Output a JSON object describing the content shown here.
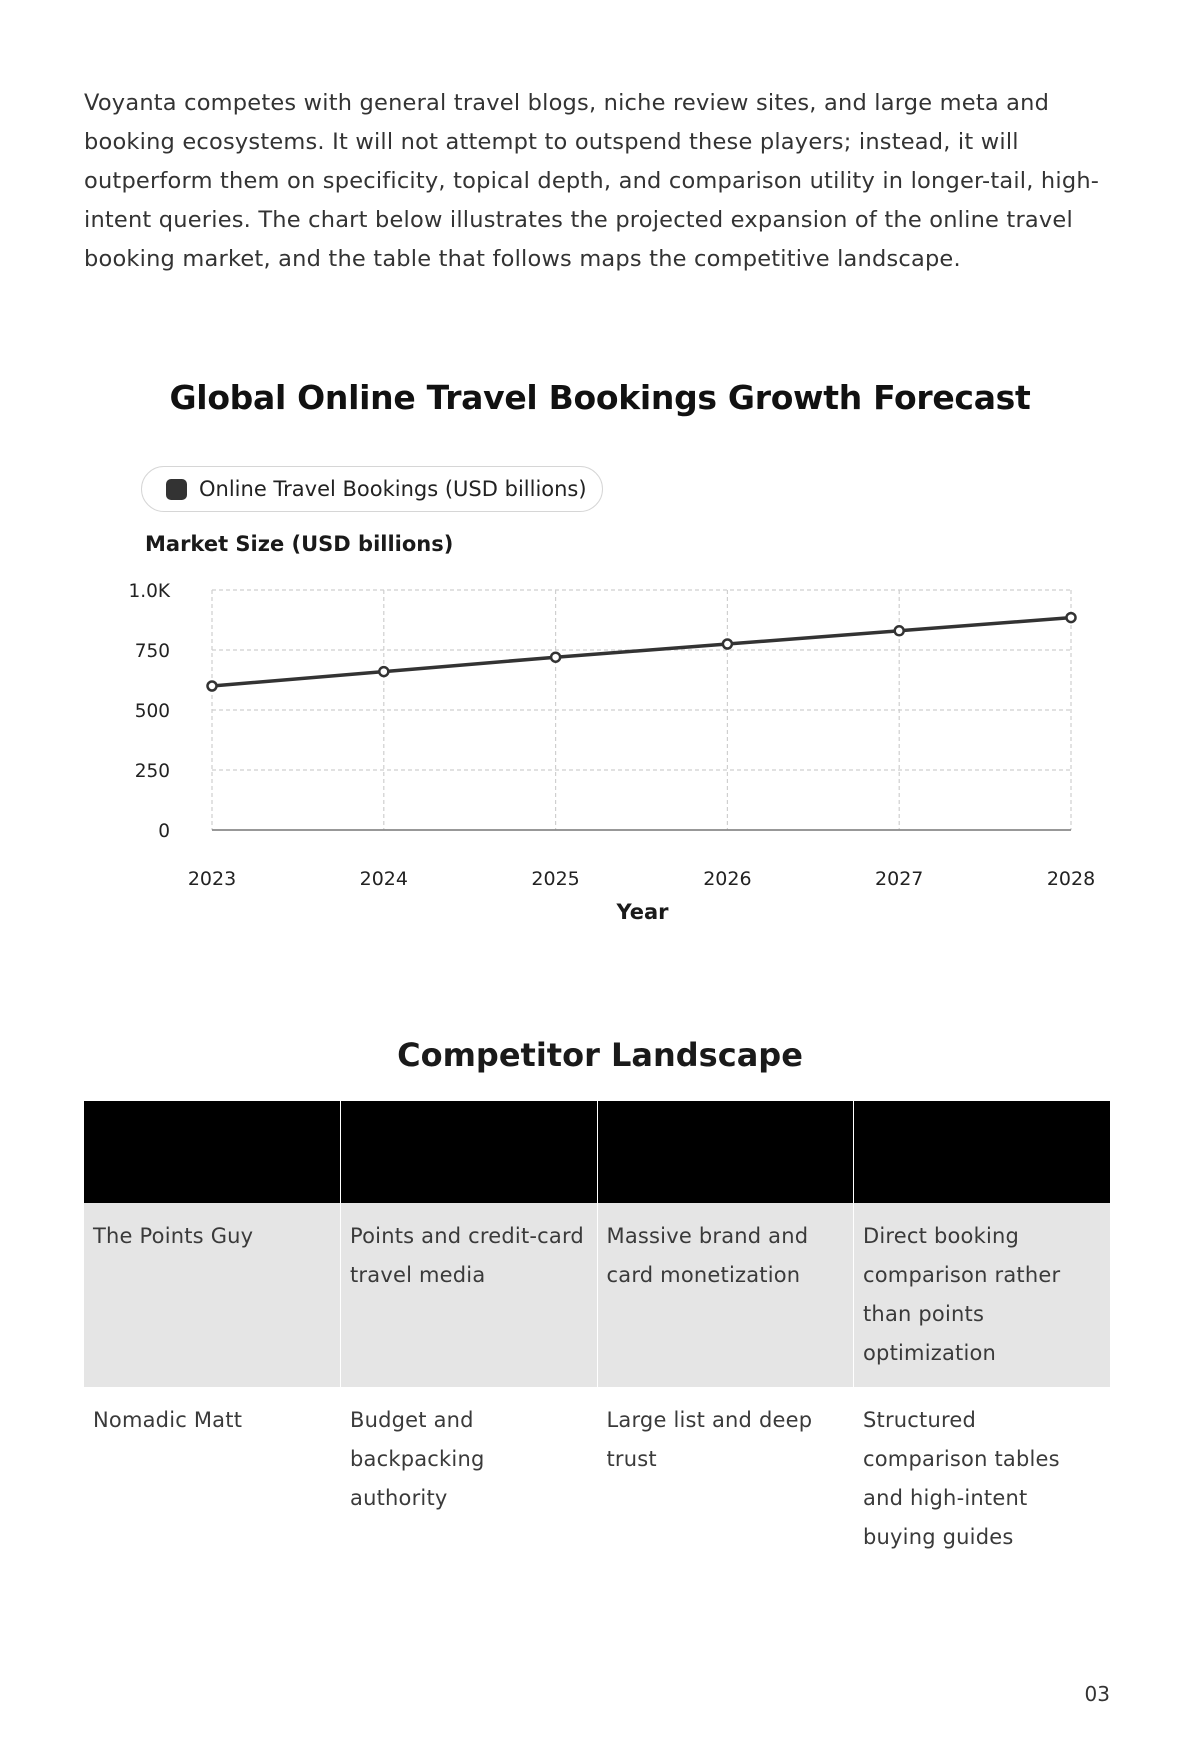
{
  "intro": {
    "text": "Voyanta competes with general travel blogs, niche review sites, and large meta and booking ecosystems. It will not attempt to outspend these players; instead, it will outperform them on specificity, topical depth, and comparison utility in longer-tail, high-intent queries. The chart below illustrates the projected expansion of the online travel booking market, and the table that follows maps the competitive landscape."
  },
  "chart_data": {
    "type": "line",
    "title": "Global Online Travel Bookings Growth Forecast",
    "legend": "top-left",
    "xlabel": "Year",
    "ylabel": "Market Size (USD billions)",
    "x": [
      "2023",
      "2024",
      "2025",
      "2026",
      "2027",
      "2028"
    ],
    "series": [
      {
        "name": "Online Travel Bookings (USD billions)",
        "values": [
          600,
          660,
          720,
          775,
          830,
          885
        ]
      }
    ],
    "ylim": [
      0,
      1000
    ],
    "yticks": [
      "0",
      "250",
      "500",
      "750",
      "1.0K"
    ],
    "grid": true,
    "line_color": "#333333"
  },
  "table": {
    "title": "Competitor Landscape",
    "header_color": "#000000",
    "rows": [
      [
        "The Points Guy",
        "Points and credit-card travel media",
        "Massive brand and card monetization",
        "Direct booking comparison rather than points optimization"
      ],
      [
        "Nomadic Matt",
        "Budget and backpacking authority",
        "Large list and deep trust",
        "Structured comparison tables and high-intent buying guides"
      ]
    ]
  },
  "page": {
    "number": "03"
  }
}
